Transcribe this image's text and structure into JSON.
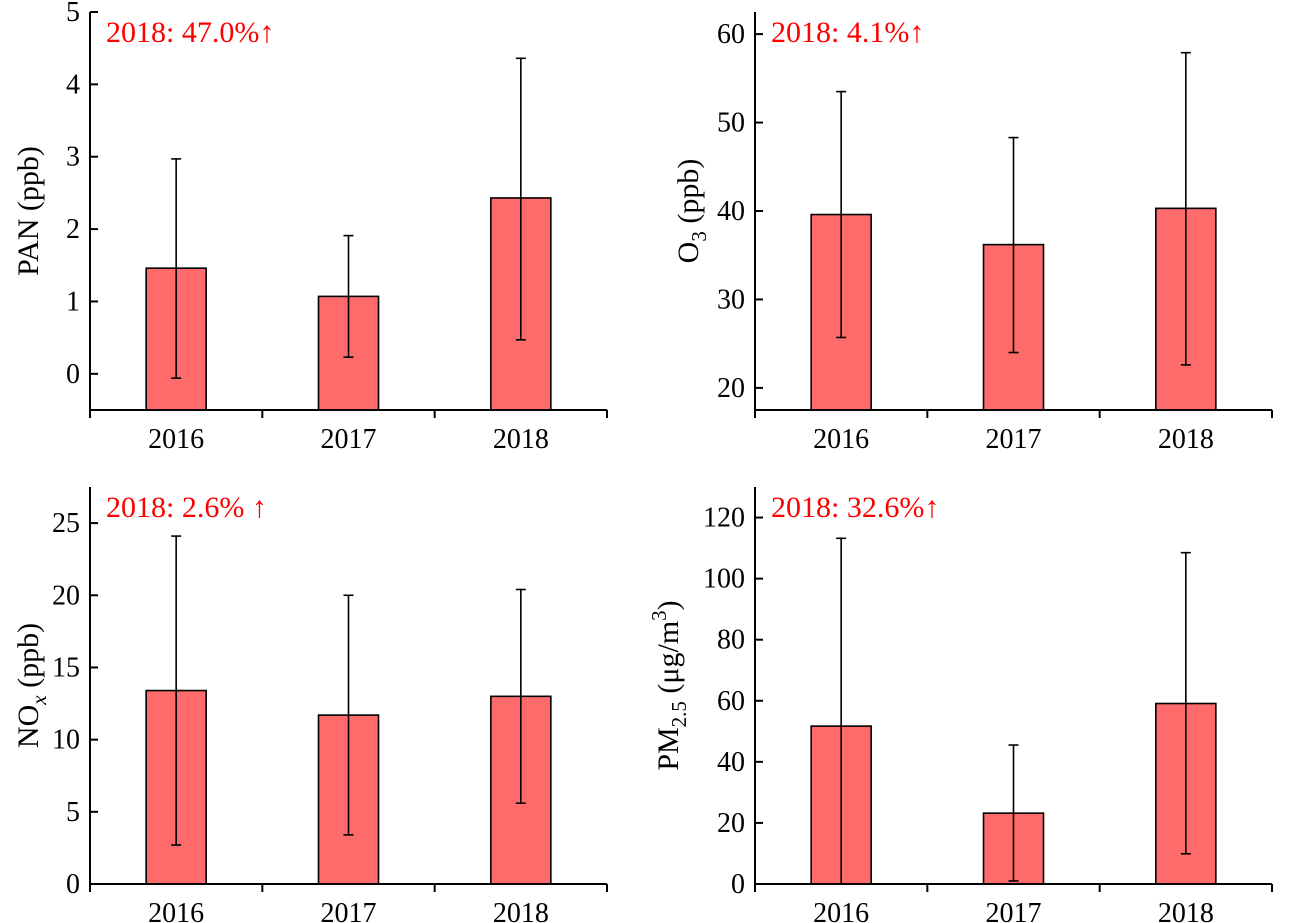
{
  "figure": {
    "panels": [
      {
        "id": "pan",
        "annotation": "2018: 47.0%↑",
        "ylabel_parts": [
          [
            "PAN (ppb)",
            "n"
          ]
        ]
      },
      {
        "id": "o3",
        "annotation": "2018: 4.1%↑",
        "ylabel_parts": [
          [
            "O",
            "n"
          ],
          [
            "3",
            "sub"
          ],
          [
            " (ppb)",
            "n"
          ]
        ]
      },
      {
        "id": "nox",
        "annotation": "2018: 2.6% ↑",
        "ylabel_parts": [
          [
            "NO",
            "n"
          ],
          [
            "x",
            "sub-i"
          ],
          [
            " (ppb)",
            "n"
          ]
        ]
      },
      {
        "id": "pm25",
        "annotation": "2018: 32.6%↑",
        "ylabel_parts": [
          [
            "PM",
            "n"
          ],
          [
            "2.5",
            "sub"
          ],
          [
            " (μg/m",
            "n"
          ],
          [
            "3",
            "sup"
          ],
          [
            ")",
            "n"
          ]
        ]
      }
    ]
  },
  "chart_data": [
    {
      "type": "bar",
      "categories": [
        "2016",
        "2017",
        "2018"
      ],
      "values": [
        1.46,
        1.07,
        2.43
      ],
      "error_low": [
        -0.06,
        0.23,
        0.47
      ],
      "error_high": [
        2.97,
        1.91,
        4.36
      ],
      "ylabel": "PAN (ppb)",
      "ylim": [
        -0.5,
        5
      ],
      "yticks": [
        0,
        1,
        2,
        3,
        4,
        5
      ],
      "annotation": "2018: 47.0%↑",
      "bar_color": "#ff6b6b"
    },
    {
      "type": "bar",
      "categories": [
        "2016",
        "2017",
        "2018"
      ],
      "values": [
        39.6,
        36.2,
        40.3
      ],
      "error_low": [
        25.7,
        24.0,
        22.6
      ],
      "error_high": [
        53.5,
        48.3,
        57.9
      ],
      "ylabel": "O3 (ppb)",
      "ylim": [
        17.5,
        62.5
      ],
      "yticks": [
        20,
        30,
        40,
        50,
        60
      ],
      "annotation": "2018: 4.1%↑",
      "bar_color": "#ff6b6b"
    },
    {
      "type": "bar",
      "categories": [
        "2016",
        "2017",
        "2018"
      ],
      "values": [
        13.4,
        11.7,
        13.0
      ],
      "error_low": [
        2.7,
        3.4,
        5.6
      ],
      "error_high": [
        24.1,
        20.0,
        20.4
      ],
      "ylabel": "NOx (ppb)",
      "ylim": [
        0,
        27.5
      ],
      "yticks": [
        0,
        5,
        10,
        15,
        20,
        25
      ],
      "annotation": "2018: 2.6% ↑",
      "bar_color": "#ff6b6b"
    },
    {
      "type": "bar",
      "categories": [
        "2016",
        "2017",
        "2018"
      ],
      "values": [
        51.7,
        23.2,
        59.1
      ],
      "error_low": [
        0,
        1.0,
        9.9
      ],
      "error_high": [
        113.2,
        45.5,
        108.5
      ],
      "ylabel": "PM2.5 (μg/m3)",
      "ylim": [
        0,
        130
      ],
      "yticks": [
        0,
        20,
        40,
        60,
        80,
        100,
        120
      ],
      "annotation": "2018: 32.6%↑",
      "bar_color": "#ff6b6b"
    }
  ]
}
